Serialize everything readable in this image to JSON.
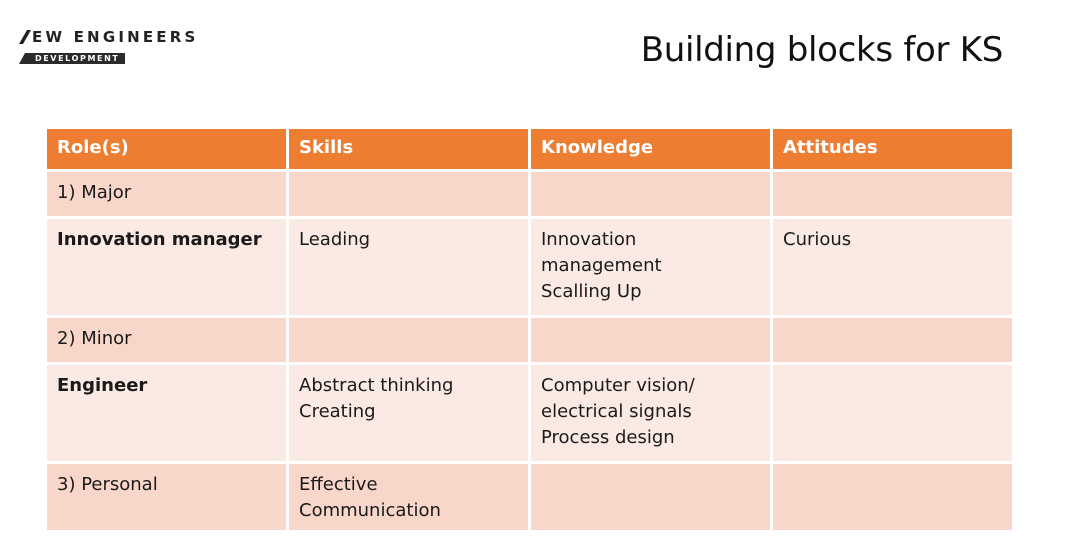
{
  "logo": {
    "name_line": "NEW ENGINEERS",
    "name_rest": "EW ENGINEERS",
    "banner": "DEVELOPMENT"
  },
  "title": "Building blocks for KS",
  "colors": {
    "header": "#ed7d31",
    "row_dark": "#f8d6ca",
    "row_light": "#fbe9e4"
  },
  "table": {
    "headers": [
      "Role(s)",
      "Skills",
      "Knowledge",
      "Attitudes"
    ],
    "rows": [
      {
        "role": "1) Major",
        "skills": [],
        "knowledge": [],
        "attitudes": []
      },
      {
        "role": "Innovation manager",
        "skills": [
          "Leading"
        ],
        "knowledge": [
          "Innovation",
          "management",
          "Scalling Up"
        ],
        "attitudes": [
          "Curious"
        ]
      },
      {
        "role": "2) Minor",
        "skills": [],
        "knowledge": [],
        "attitudes": []
      },
      {
        "role": "Engineer",
        "skills": [
          "Abstract thinking",
          "Creating"
        ],
        "knowledge": [
          "Computer vision/",
          "electrical signals",
          "Process design"
        ],
        "attitudes": []
      },
      {
        "role": "3) Personal",
        "skills": [
          "Effective",
          "Communication"
        ],
        "knowledge": [],
        "attitudes": []
      }
    ]
  }
}
